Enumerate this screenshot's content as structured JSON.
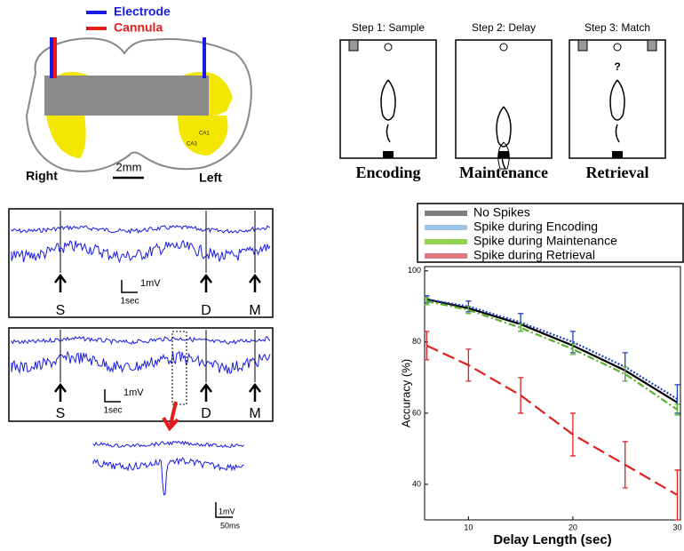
{
  "brain": {
    "legend": [
      {
        "label": "Electrode",
        "color": "#1a1ae6"
      },
      {
        "label": "Cannula",
        "color": "#e61a1a"
      }
    ],
    "regions": [
      "CA3",
      "CA1"
    ],
    "sides": [
      "Right",
      "Left"
    ],
    "scale": "2mm"
  },
  "task": {
    "steps": [
      {
        "label": "Step 1: Sample",
        "phase": "Encoding"
      },
      {
        "label": "Step 2: Delay",
        "phase": "Maintenance"
      },
      {
        "label": "Step 3: Match",
        "phase": "Retrieval"
      }
    ],
    "cue": "?"
  },
  "traces": {
    "panels": [
      {
        "markers": [
          "S",
          "D",
          "M"
        ],
        "scale_v": "1mV",
        "scale_t": "1sec"
      },
      {
        "markers": [
          "S",
          "D",
          "M"
        ],
        "scale_v": "1mV",
        "scale_t": "1sec"
      }
    ],
    "zoom": {
      "scale_v": "1mV",
      "scale_t": "50ms"
    }
  },
  "chart_data": {
    "type": "line",
    "x_label": "Delay Length (sec)",
    "y_label": "Accuracy (%)",
    "x": [
      6,
      10,
      15,
      20,
      25,
      30
    ],
    "series": [
      {
        "name": "No Spikes",
        "color": "#000000",
        "legend_color": "#7f7f7f",
        "dash": "",
        "values": [
          92,
          89.5,
          85,
          79,
          72,
          63
        ]
      },
      {
        "name": "Spike during Encoding",
        "color": "#1f3fbf",
        "legend_color": "#9dc3e6",
        "dash": "2 2",
        "values": [
          92,
          90,
          85.5,
          80,
          73,
          64
        ],
        "errors": [
          1,
          1.5,
          2.5,
          3,
          4,
          4
        ]
      },
      {
        "name": "Spike during Maintenance",
        "color": "#5cb030",
        "legend_color": "#92d050",
        "dash": "8 3 2 3",
        "values": [
          91.5,
          89,
          84,
          78,
          71,
          61
        ],
        "errors": [
          1,
          1,
          1,
          1.5,
          2,
          1.5
        ]
      },
      {
        "name": "Spike during Retrieval",
        "color": "#e02020",
        "legend_color": "#e07a80",
        "dash": "14 6",
        "values": [
          79,
          73.5,
          65,
          54,
          45.5,
          37
        ],
        "errors": [
          4,
          4.5,
          5,
          6,
          6.5,
          7
        ]
      }
    ],
    "xlim": [
      5.8,
      30.3
    ],
    "ylim": [
      30,
      101.2
    ],
    "xticks": [
      10,
      20,
      30
    ],
    "yticks": [
      40,
      60,
      80,
      100
    ]
  }
}
